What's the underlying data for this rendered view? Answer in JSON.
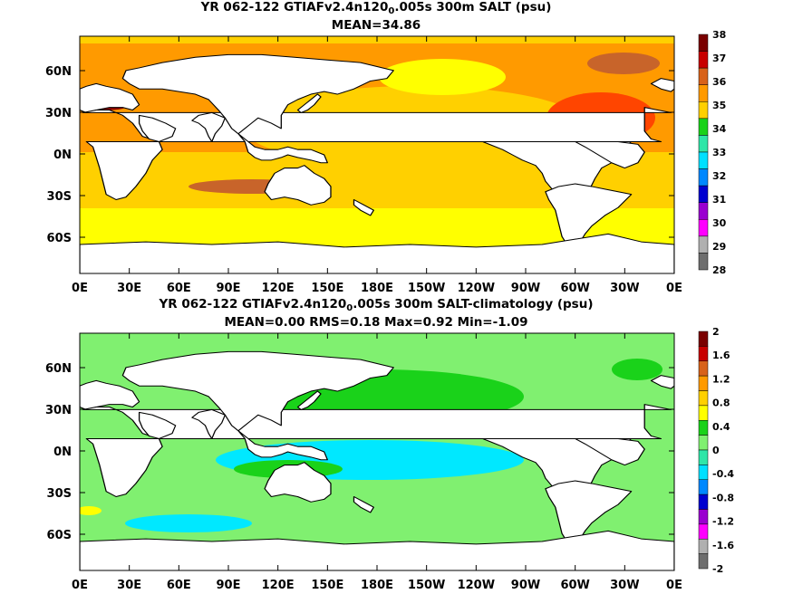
{
  "chart_data": [
    {
      "type": "heatmap",
      "title_prefix": "YR 062-122 GTIAFv2.4n120",
      "title_subscript": "0",
      "title_suffix": ".005s 300m SALT (psu)",
      "subtitle": "MEAN=34.86",
      "x_ticks": [
        "0E",
        "30E",
        "60E",
        "90E",
        "120E",
        "150E",
        "180E",
        "150W",
        "120W",
        "90W",
        "60W",
        "30W",
        "0E"
      ],
      "y_ticks": [
        "60N",
        "30N",
        "0N",
        "30S",
        "60S"
      ],
      "colorbar": {
        "labels": [
          "38",
          "37",
          "36",
          "35",
          "34",
          "33",
          "32",
          "31",
          "30",
          "29",
          "28"
        ],
        "colors": [
          "#7a0000",
          "#c80000",
          "#d8621a",
          "#ff9a00",
          "#ffd000",
          "#1ad21a",
          "#2fe6a8",
          "#00e0ff",
          "#0088ff",
          "#0000d0",
          "#9a00d0",
          "#ff00ff",
          "#b0b0b0",
          "#6e6e6e"
        ]
      },
      "field_regions": {
        "ocean_base": "#ffd000",
        "subtropics": "#ff9a00",
        "north_atlantic": "#ff4500",
        "mediterranean": "#8b0000",
        "southern_ocean": "#ffff00",
        "subpolar": "#1ad21a"
      }
    },
    {
      "type": "heatmap",
      "title_prefix": "YR 062-122 GTIAFv2.4n120",
      "title_subscript": "0",
      "title_suffix": ".005s 300m SALT-climatology (psu)",
      "subtitle": "MEAN=0.00   RMS=0.18   Max=0.92   Min=-1.09",
      "x_ticks": [
        "0E",
        "30E",
        "60E",
        "90E",
        "120E",
        "150E",
        "180E",
        "150W",
        "120W",
        "90W",
        "60W",
        "30W",
        "0E"
      ],
      "y_ticks": [
        "60N",
        "30N",
        "0N",
        "30S",
        "60S"
      ],
      "colorbar": {
        "labels": [
          "2",
          "1.6",
          "1.2",
          "0.8",
          "0.4",
          "0",
          "-0.4",
          "-0.8",
          "-1.2",
          "-1.6",
          "-2"
        ],
        "colors": [
          "#7a0000",
          "#c80000",
          "#d8621a",
          "#ff9a00",
          "#ffd000",
          "#ffff00",
          "#1ad21a",
          "#80f070",
          "#2fe6a8",
          "#00e0ff",
          "#0088ff",
          "#0000d0",
          "#9a00d0",
          "#ff00ff",
          "#b0b0b0",
          "#6e6e6e"
        ]
      },
      "field_regions": {
        "ocean_base": "#80f070",
        "positive": "#1ad21a",
        "negative": "#00e8ff",
        "strong_negative": "#0088ff",
        "strong_positive": "#ffff00"
      }
    }
  ]
}
